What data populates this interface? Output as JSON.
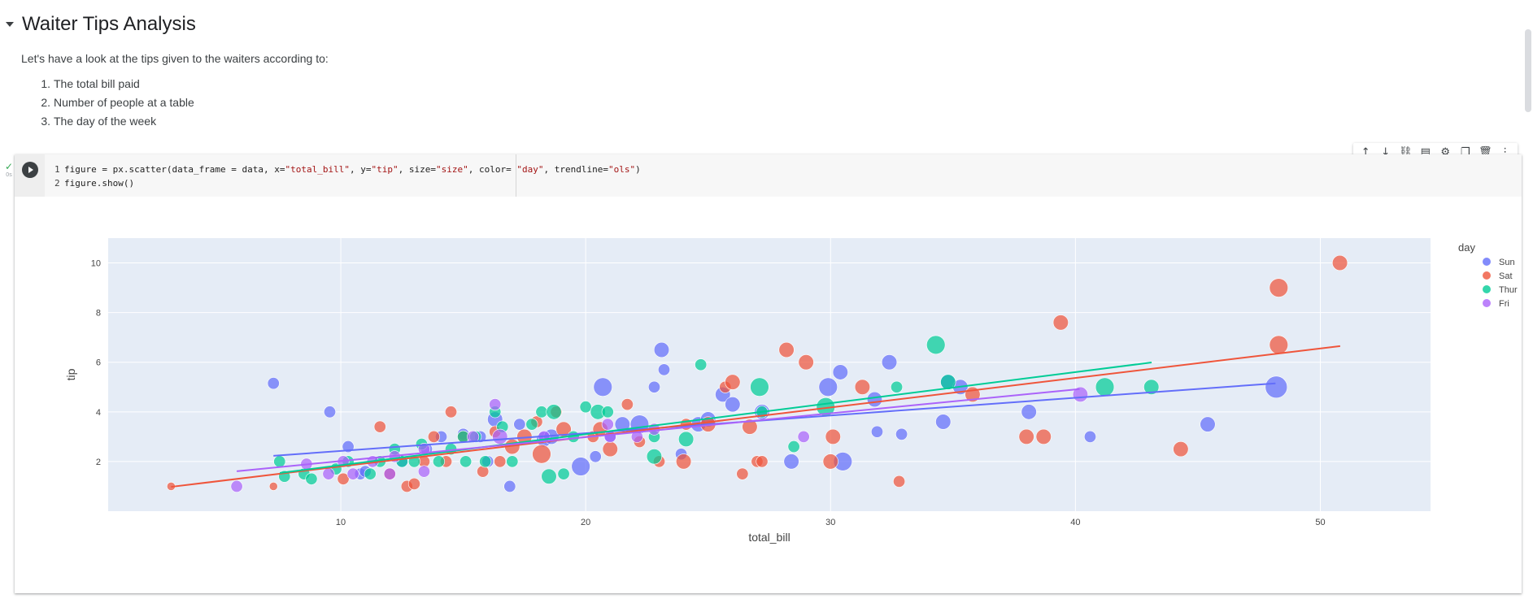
{
  "text_cell": {
    "title": "Waiter Tips Analysis",
    "intro": "Let's have a look at the tips given to the waiters according to:",
    "items": [
      {
        "num": "1.",
        "text": "The total bill paid"
      },
      {
        "num": "2.",
        "text": "Number of people at a table"
      },
      {
        "num": "3.",
        "text": "The day of the week"
      }
    ]
  },
  "code_cell": {
    "status_time": "0s",
    "lines": [
      {
        "num": "1",
        "parts": [
          {
            "t": "figure = px.scatter(data_frame = data, x=",
            "c": "#212121"
          },
          {
            "t": "\"total_bill\"",
            "c": "#a31515"
          },
          {
            "t": ", y=",
            "c": "#212121"
          },
          {
            "t": "\"tip\"",
            "c": "#a31515"
          },
          {
            "t": ", size=",
            "c": "#212121"
          },
          {
            "t": "\"size\"",
            "c": "#a31515"
          },
          {
            "t": ", color= ",
            "c": "#212121"
          },
          {
            "t": "\"day\"",
            "c": "#a31515"
          },
          {
            "t": ", trendline=",
            "c": "#212121"
          },
          {
            "t": "\"ols\"",
            "c": "#a31515"
          },
          {
            "t": ")",
            "c": "#212121"
          }
        ]
      },
      {
        "num": "2",
        "parts": [
          {
            "t": "figure.show()",
            "c": "#212121"
          }
        ]
      }
    ]
  },
  "toolbar": {
    "buttons": [
      {
        "name": "move-up-button",
        "icon": "arrow-up-icon",
        "glyph": "↑"
      },
      {
        "name": "move-down-button",
        "icon": "arrow-down-icon",
        "glyph": "↓"
      },
      {
        "name": "link-button",
        "icon": "link-icon",
        "glyph": "⛓"
      },
      {
        "name": "comment-button",
        "icon": "comment-icon",
        "glyph": "▤"
      },
      {
        "name": "settings-button",
        "icon": "gear-icon",
        "glyph": "⚙"
      },
      {
        "name": "mirror-button",
        "icon": "mirror-cell-icon",
        "glyph": "❐"
      },
      {
        "name": "delete-button",
        "icon": "trash-icon",
        "glyph": "🗑"
      },
      {
        "name": "more-button",
        "icon": "more-vert-icon",
        "glyph": "⋮"
      }
    ]
  },
  "chart_data": {
    "type": "scatter",
    "xlabel": "total_bill",
    "ylabel": "tip",
    "xlim": [
      0.5,
      54.5
    ],
    "ylim": [
      0,
      11
    ],
    "xticks": [
      10,
      20,
      30,
      40,
      50
    ],
    "yticks": [
      2,
      4,
      6,
      8,
      10
    ],
    "grid": true,
    "legend": {
      "title": "day",
      "placement": "right"
    },
    "series": [
      {
        "name": "Sun",
        "color": "#636efa",
        "trendline": {
          "x": [
            7.25,
            48.17
          ],
          "y": [
            2.23,
            5.15
          ]
        },
        "points": [
          [
            7.25,
            5.15,
            2
          ],
          [
            9.55,
            4.0,
            2
          ],
          [
            10.3,
            2.6,
            2
          ],
          [
            10.8,
            1.5,
            2
          ],
          [
            14.1,
            3.0,
            2
          ],
          [
            15.0,
            3.1,
            2
          ],
          [
            15.7,
            3.0,
            2
          ],
          [
            16.3,
            3.7,
            3
          ],
          [
            16.9,
            1.0,
            2
          ],
          [
            17.3,
            3.5,
            2
          ],
          [
            18.3,
            2.9,
            3
          ],
          [
            19.8,
            1.8,
            4
          ],
          [
            20.7,
            5.0,
            4
          ],
          [
            21.5,
            3.5,
            3
          ],
          [
            22.2,
            3.5,
            4
          ],
          [
            22.8,
            5.0,
            2
          ],
          [
            23.1,
            6.5,
            3
          ],
          [
            23.2,
            5.7,
            2
          ],
          [
            23.9,
            2.3,
            2
          ],
          [
            24.6,
            3.5,
            3
          ],
          [
            25.0,
            3.7,
            3
          ],
          [
            25.6,
            4.7,
            3
          ],
          [
            26.0,
            4.3,
            3
          ],
          [
            27.2,
            4.0,
            3
          ],
          [
            28.4,
            2.0,
            3
          ],
          [
            29.9,
            5.0,
            4
          ],
          [
            30.4,
            5.6,
            3
          ],
          [
            30.5,
            2.0,
            4
          ],
          [
            31.8,
            4.5,
            3
          ],
          [
            31.9,
            3.2,
            2
          ],
          [
            32.4,
            6.0,
            3
          ],
          [
            32.9,
            3.1,
            2
          ],
          [
            34.8,
            5.2,
            3
          ],
          [
            35.3,
            5.0,
            3
          ],
          [
            34.6,
            3.6,
            3
          ],
          [
            38.1,
            4.0,
            3
          ],
          [
            40.6,
            3.0,
            2
          ],
          [
            45.4,
            3.5,
            3
          ],
          [
            48.2,
            5.0,
            5
          ],
          [
            11.0,
            1.6,
            2
          ],
          [
            12.5,
            2.0,
            2
          ],
          [
            13.5,
            2.5,
            2
          ],
          [
            16.0,
            2.0,
            2
          ],
          [
            18.6,
            3.0,
            3
          ],
          [
            20.4,
            2.2,
            2
          ],
          [
            21.0,
            3.0,
            2
          ]
        ]
      },
      {
        "name": "Sat",
        "color": "#ef553b",
        "trendline": {
          "x": [
            3.07,
            50.81
          ],
          "y": [
            0.98,
            6.65
          ]
        },
        "points": [
          [
            3.07,
            1.0,
            1
          ],
          [
            7.25,
            1.0,
            1
          ],
          [
            10.1,
            1.3,
            2
          ],
          [
            11.6,
            3.4,
            2
          ],
          [
            12.7,
            1.0,
            2
          ],
          [
            13.0,
            1.1,
            2
          ],
          [
            13.4,
            2.0,
            2
          ],
          [
            14.3,
            2.0,
            2
          ],
          [
            15.0,
            3.0,
            2
          ],
          [
            15.8,
            1.6,
            2
          ],
          [
            16.3,
            3.2,
            2
          ],
          [
            17.5,
            3.0,
            3
          ],
          [
            18.2,
            2.3,
            4
          ],
          [
            18.8,
            4.0,
            2
          ],
          [
            19.1,
            3.3,
            3
          ],
          [
            20.3,
            3.0,
            2
          ],
          [
            20.6,
            3.3,
            3
          ],
          [
            21.7,
            4.3,
            2
          ],
          [
            22.2,
            2.8,
            2
          ],
          [
            23.0,
            2.0,
            2
          ],
          [
            24.0,
            2.0,
            3
          ],
          [
            25.0,
            3.5,
            3
          ],
          [
            25.7,
            5.0,
            2
          ],
          [
            26.0,
            5.2,
            3
          ],
          [
            27.0,
            2.0,
            2
          ],
          [
            26.4,
            1.5,
            2
          ],
          [
            27.2,
            2.0,
            2
          ],
          [
            28.2,
            6.5,
            3
          ],
          [
            29.0,
            6.0,
            3
          ],
          [
            30.1,
            3.0,
            3
          ],
          [
            30.0,
            2.0,
            3
          ],
          [
            31.3,
            5.0,
            3
          ],
          [
            32.8,
            1.2,
            2
          ],
          [
            35.8,
            4.7,
            3
          ],
          [
            38.0,
            3.0,
            3
          ],
          [
            38.7,
            3.0,
            3
          ],
          [
            39.4,
            7.6,
            3
          ],
          [
            44.3,
            2.5,
            3
          ],
          [
            48.3,
            9.0,
            4
          ],
          [
            48.3,
            6.7,
            4
          ],
          [
            50.8,
            10.0,
            3
          ],
          [
            14.5,
            4.0,
            2
          ],
          [
            18.0,
            3.6,
            2
          ],
          [
            17.0,
            2.6,
            3
          ],
          [
            21.0,
            2.5,
            3
          ],
          [
            16.5,
            2.0,
            2
          ],
          [
            12.0,
            1.5,
            2
          ],
          [
            13.8,
            3.0,
            2
          ],
          [
            24.1,
            3.5,
            2
          ],
          [
            26.7,
            3.4,
            3
          ]
        ]
      },
      {
        "name": "Thur",
        "color": "#00cc96",
        "trendline": {
          "x": [
            7.51,
            43.11
          ],
          "y": [
            1.54,
            5.99
          ]
        },
        "points": [
          [
            7.5,
            2.0,
            2
          ],
          [
            7.7,
            1.4,
            2
          ],
          [
            8.5,
            1.5,
            2
          ],
          [
            8.8,
            1.3,
            2
          ],
          [
            9.8,
            1.7,
            2
          ],
          [
            10.3,
            2.0,
            2
          ],
          [
            11.2,
            1.5,
            2
          ],
          [
            11.6,
            2.0,
            2
          ],
          [
            12.2,
            2.5,
            2
          ],
          [
            12.5,
            2.0,
            2
          ],
          [
            13.0,
            2.0,
            2
          ],
          [
            13.3,
            2.7,
            2
          ],
          [
            14.0,
            2.0,
            2
          ],
          [
            14.5,
            2.5,
            2
          ],
          [
            15.1,
            2.0,
            2
          ],
          [
            15.5,
            3.0,
            2
          ],
          [
            15.9,
            2.0,
            2
          ],
          [
            16.3,
            4.0,
            2
          ],
          [
            16.6,
            3.4,
            2
          ],
          [
            17.0,
            2.0,
            2
          ],
          [
            17.8,
            3.5,
            2
          ],
          [
            18.2,
            4.0,
            2
          ],
          [
            18.7,
            4.0,
            3
          ],
          [
            18.5,
            1.4,
            3
          ],
          [
            19.1,
            1.5,
            2
          ],
          [
            19.5,
            3.0,
            2
          ],
          [
            20.0,
            4.2,
            2
          ],
          [
            20.5,
            4.0,
            3
          ],
          [
            20.9,
            4.0,
            2
          ],
          [
            22.8,
            3.0,
            2
          ],
          [
            22.8,
            2.2,
            3
          ],
          [
            24.1,
            2.9,
            3
          ],
          [
            24.7,
            5.9,
            2
          ],
          [
            27.1,
            5.0,
            4
          ],
          [
            27.2,
            4.0,
            2
          ],
          [
            28.5,
            2.6,
            2
          ],
          [
            29.8,
            4.2,
            4
          ],
          [
            32.7,
            5.0,
            2
          ],
          [
            34.3,
            6.7,
            4
          ],
          [
            34.8,
            5.2,
            3
          ],
          [
            41.2,
            5.0,
            4
          ],
          [
            43.1,
            5.0,
            3
          ],
          [
            15.0,
            3.0,
            2
          ]
        ]
      },
      {
        "name": "Fri",
        "color": "#ab63fa",
        "trendline": {
          "x": [
            5.75,
            40.17
          ],
          "y": [
            1.61,
            4.92
          ]
        },
        "points": [
          [
            5.75,
            1.0,
            2
          ],
          [
            8.6,
            1.9,
            2
          ],
          [
            10.1,
            2.0,
            2
          ],
          [
            10.5,
            1.5,
            2
          ],
          [
            11.3,
            2.0,
            2
          ],
          [
            12.0,
            1.5,
            2
          ],
          [
            12.2,
            2.2,
            2
          ],
          [
            13.4,
            2.5,
            2
          ],
          [
            13.4,
            1.6,
            2
          ],
          [
            15.4,
            3.0,
            2
          ],
          [
            16.3,
            4.3,
            2
          ],
          [
            16.5,
            3.0,
            3
          ],
          [
            18.3,
            3.0,
            2
          ],
          [
            20.9,
            3.5,
            2
          ],
          [
            21.0,
            3.0,
            2
          ],
          [
            22.1,
            3.0,
            2
          ],
          [
            22.8,
            3.3,
            2
          ],
          [
            28.9,
            3.0,
            2
          ],
          [
            40.2,
            4.7,
            3
          ],
          [
            9.5,
            1.5,
            2
          ]
        ]
      }
    ]
  }
}
